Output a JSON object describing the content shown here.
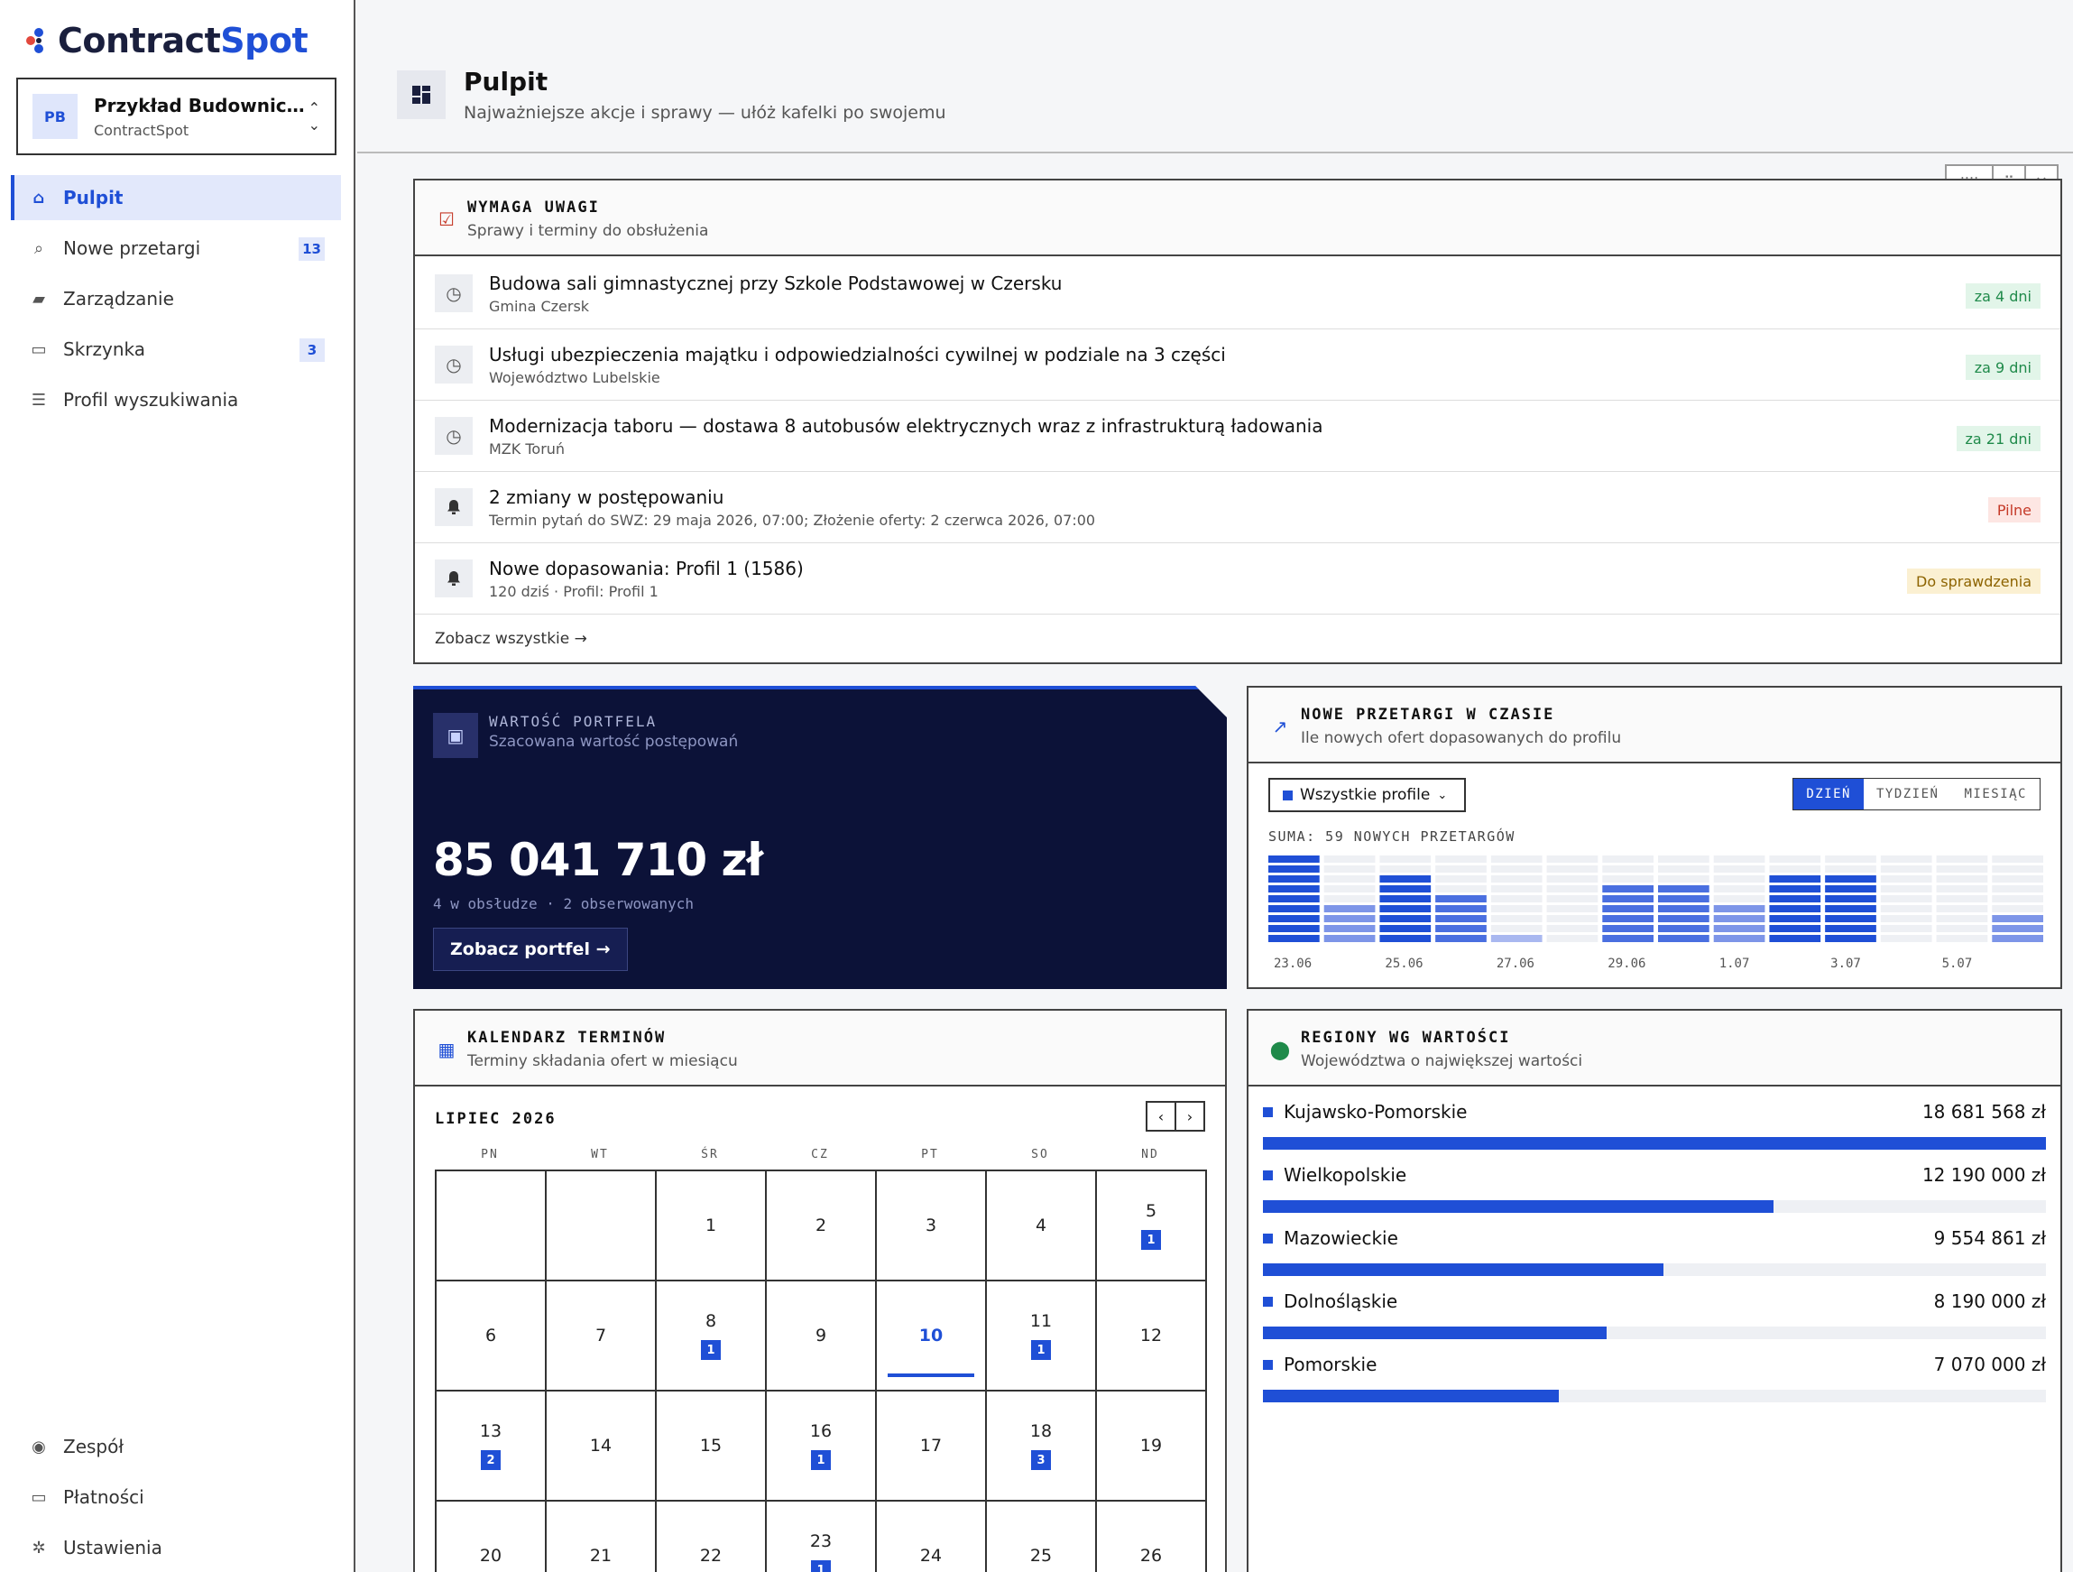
{
  "brand": {
    "part1": "Contract",
    "part2": "Spot"
  },
  "org": {
    "initials": "PB",
    "name": "Przykład Budownict...",
    "sub": "ContractSpot"
  },
  "nav": [
    {
      "label": "Pulpit",
      "icon": "home-icon",
      "active": true
    },
    {
      "label": "Nowe przetargi",
      "icon": "search-icon",
      "badge": "13"
    },
    {
      "label": "Zarządzanie",
      "icon": "briefcase-icon"
    },
    {
      "label": "Skrzynka",
      "icon": "inbox-icon",
      "badge": "3"
    },
    {
      "label": "Profil wyszukiwania",
      "icon": "sliders-icon"
    }
  ],
  "nav_bottom": [
    {
      "label": "Zespół",
      "icon": "user-circle-icon"
    },
    {
      "label": "Płatności",
      "icon": "credit-card-icon"
    },
    {
      "label": "Ustawienia",
      "icon": "gear-icon"
    }
  ],
  "header": {
    "title": "Pulpit",
    "subtitle": "Najważniejsze akcje i sprawy — ułóż kafelki po swojemu"
  },
  "attention": {
    "title": "WYMAGA UWAGI",
    "subtitle": "Sprawy i terminy do obsłużenia",
    "items": [
      {
        "title": "Budowa sali gimnastycznej przy Szkole Podstawowej w Czersku",
        "sub": "Gmina Czersk",
        "tag": "za 4 dni",
        "kind": "green",
        "icon": "clock-icon"
      },
      {
        "title": "Usługi ubezpieczenia majątku i odpowiedzialności cywilnej w podziale na 3 części",
        "sub": "Województwo Lubelskie",
        "tag": "za 9 dni",
        "kind": "green",
        "icon": "clock-icon"
      },
      {
        "title": "Modernizacja taboru — dostawa 8 autobusów elektrycznych wraz z infrastrukturą ładowania",
        "sub": "MZK Toruń",
        "tag": "za 21 dni",
        "kind": "green",
        "icon": "clock-icon"
      },
      {
        "title": "2 zmiany w postępowaniu",
        "sub": "Termin pytań do SWZ: 29 maja 2026, 07:00; Złożenie oferty: 2 czerwca 2026, 07:00",
        "tag": "Pilne",
        "kind": "red",
        "icon": "bell-icon"
      },
      {
        "title": "Nowe dopasowania: Profil 1 (1586)",
        "sub": "120 dziś · Profil: Profil 1",
        "tag": "Do sprawdzenia",
        "kind": "amber",
        "icon": "bell-icon"
      }
    ],
    "see_all": "Zobacz wszystkie →"
  },
  "portfolio": {
    "title": "WARTOŚĆ PORTFELA",
    "subtitle": "Szacowana wartość postępowań",
    "value": "85 041 710 zł",
    "meta": "4 w obsłudze · 2 obserwowanych",
    "button": "Zobacz portfel →"
  },
  "timeline": {
    "title": "NOWE PRZETARGI W CZASIE",
    "subtitle": "Ile nowych ofert dopasowanych do profilu",
    "dropdown": "Wszystkie profile",
    "periods": [
      "DZIEŃ",
      "TYDZIEŃ",
      "MIESIĄC"
    ],
    "active_period": "DZIEŃ",
    "summary": "SUMA: 59 NOWYCH PRZETARGÓW"
  },
  "chart_data": {
    "type": "bar",
    "title": "NOWE PRZETARGI W CZASIE",
    "categories": [
      "23.06",
      "24.06",
      "25.06",
      "26.06",
      "27.06",
      "28.06",
      "29.06",
      "30.06",
      "1.07",
      "2.07",
      "3.07",
      "4.07",
      "5.07",
      "6.07"
    ],
    "tick_labels": [
      "23.06",
      "25.06",
      "27.06",
      "29.06",
      "1.07",
      "3.07",
      "5.07"
    ],
    "values": [
      9,
      4,
      7,
      5,
      1,
      0,
      6,
      6,
      4,
      7,
      7,
      0,
      0,
      3
    ],
    "ymax": 9
  },
  "calendar": {
    "title": "KALENDARZ TERMINÓW",
    "subtitle": "Terminy składania ofert w miesiącu",
    "month": "LIPIEC 2026",
    "dow": [
      "PN",
      "WT",
      "ŚR",
      "CZ",
      "PT",
      "SO",
      "ND"
    ],
    "today": 10,
    "rows": [
      [
        null,
        null,
        {
          "d": "1"
        },
        {
          "d": "2"
        },
        {
          "d": "3"
        },
        {
          "d": "4"
        },
        {
          "d": "5",
          "b": "1"
        }
      ],
      [
        {
          "d": "6"
        },
        {
          "d": "7"
        },
        {
          "d": "8",
          "b": "1"
        },
        {
          "d": "9"
        },
        {
          "d": "10"
        },
        {
          "d": "11",
          "b": "1"
        },
        {
          "d": "12"
        }
      ],
      [
        {
          "d": "13",
          "b": "2"
        },
        {
          "d": "14"
        },
        {
          "d": "15"
        },
        {
          "d": "16",
          "b": "1"
        },
        {
          "d": "17"
        },
        {
          "d": "18",
          "b": "3"
        },
        {
          "d": "19"
        }
      ],
      [
        {
          "d": "20"
        },
        {
          "d": "21"
        },
        {
          "d": "22"
        },
        {
          "d": "23",
          "b": "1"
        },
        {
          "d": "24"
        },
        {
          "d": "25"
        },
        {
          "d": "26"
        }
      ]
    ]
  },
  "regions": {
    "title": "REGIONY WG WARTOŚCI",
    "subtitle": "Województwa o największej wartości",
    "items": [
      {
        "name": "Kujawsko-Pomorskie",
        "value": "18 681 568 zł",
        "amount": 18681568
      },
      {
        "name": "Wielkopolskie",
        "value": "12 190 000 zł",
        "amount": 12190000
      },
      {
        "name": "Mazowieckie",
        "value": "9 554 861 zł",
        "amount": 9554861
      },
      {
        "name": "Dolnośląskie",
        "value": "8 190 000 zł",
        "amount": 8190000
      },
      {
        "name": "Pomorskie",
        "value": "7 070 000 zł",
        "amount": 7070000
      }
    ]
  },
  "colors": {
    "accent": "#1f4fd6",
    "navy": "#0c1238"
  }
}
